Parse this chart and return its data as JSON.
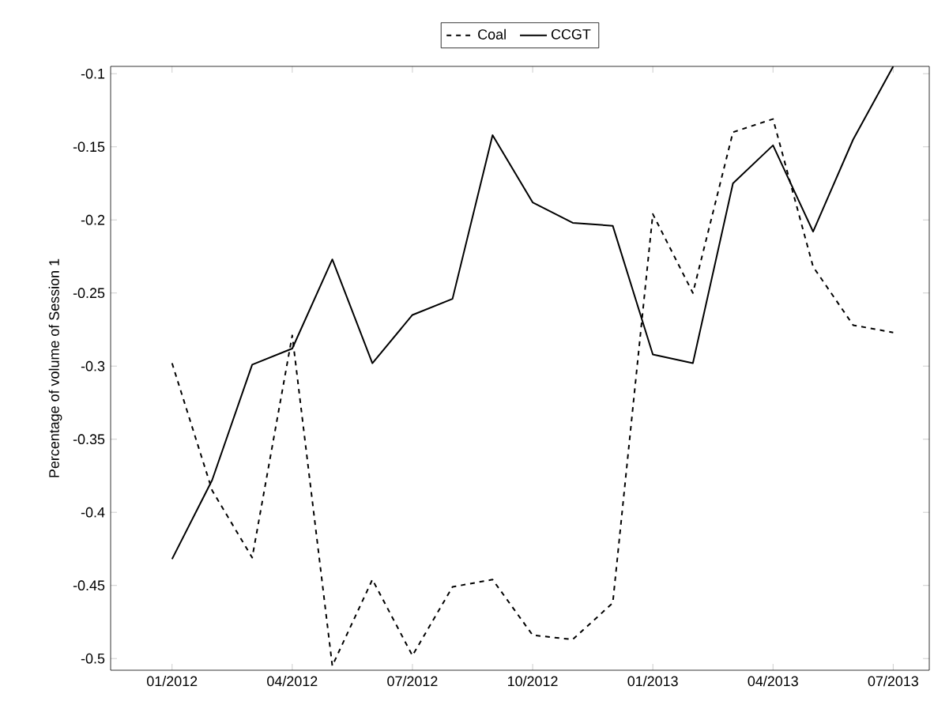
{
  "chart_data": {
    "type": "line",
    "ylabel": "Percentage of volume of Session 1",
    "x": [
      "2012-01",
      "2012-02",
      "2012-03",
      "2012-04",
      "2012-05",
      "2012-06",
      "2012-07",
      "2012-08",
      "2012-09",
      "2012-10",
      "2012-11",
      "2012-12",
      "2013-01",
      "2013-02",
      "2013-03",
      "2013-04",
      "2013-05",
      "2013-06",
      "2013-07"
    ],
    "series": [
      {
        "name": "Coal",
        "color": "#000000",
        "line_style": "dashed",
        "values": [
          -0.298,
          -0.385,
          -0.431,
          -0.279,
          -0.505,
          -0.446,
          -0.498,
          -0.451,
          -0.446,
          -0.484,
          -0.487,
          -0.462,
          -0.196,
          -0.25,
          -0.14,
          -0.131,
          -0.232,
          -0.272,
          -0.277
        ]
      },
      {
        "name": "CCGT",
        "color": "#000000",
        "line_style": "solid",
        "values": [
          -0.432,
          -0.378,
          -0.299,
          -0.288,
          -0.227,
          -0.298,
          -0.265,
          -0.254,
          -0.142,
          -0.188,
          -0.202,
          -0.204,
          -0.292,
          -0.298,
          -0.175,
          -0.149,
          -0.208,
          -0.145,
          -0.095
        ]
      }
    ],
    "xlim": [
      "2011-11-15",
      "2013-07-28"
    ],
    "xticks": [
      {
        "value": "2012-01",
        "label": "01/2012"
      },
      {
        "value": "2012-04",
        "label": "04/2012"
      },
      {
        "value": "2012-07",
        "label": "07/2012"
      },
      {
        "value": "2012-10",
        "label": "10/2012"
      },
      {
        "value": "2013-01",
        "label": "01/2013"
      },
      {
        "value": "2013-04",
        "label": "04/2013"
      },
      {
        "value": "2013-07",
        "label": "07/2013"
      }
    ],
    "ylim": [
      -0.508,
      -0.095
    ],
    "yticks": [
      -0.5,
      -0.45,
      -0.4,
      -0.35,
      -0.3,
      -0.25,
      -0.2,
      -0.15,
      -0.1
    ],
    "legend": "top",
    "grid": false,
    "marker": "none"
  }
}
